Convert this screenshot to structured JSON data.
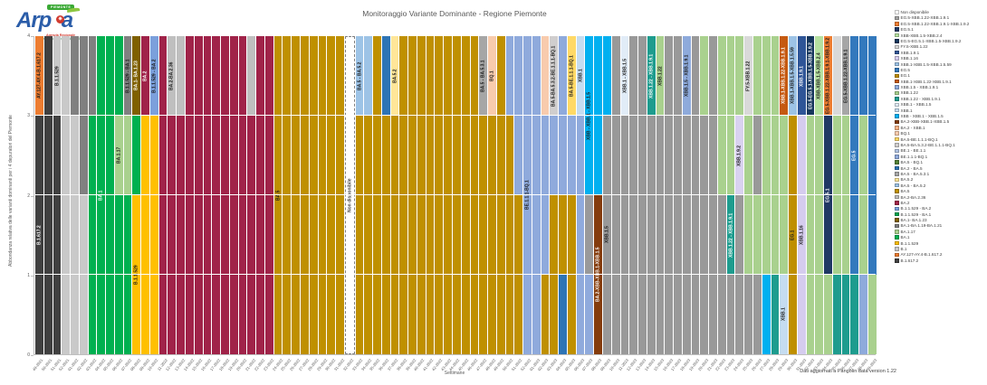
{
  "logo": {
    "tag": "PIEMONTE",
    "word": "Arp a",
    "word_left": "Arp",
    "word_right": "a",
    "dot_glyph": "✷",
    "tagline_1": "Agenzia Regionale",
    "tagline_2": "per la Protezione Ambientale"
  },
  "footer": {
    "source_note": "Dati aggiornati a Pangolin data version 1.22"
  },
  "chart_data": {
    "type": "bar",
    "stacked": true,
    "title": "Monitoraggio Variante Dominante - Regione Piemonte",
    "xlabel": "Settimane",
    "ylabel": "Abbondanza relativa delle varianti dominanti per i 4 depuratori del Piemonte",
    "ylim": [
      0,
      4
    ],
    "yticks": [
      0,
      1,
      2,
      3,
      4
    ],
    "grid": true,
    "legend_position": "right",
    "palette": {
      "Non disponibile": "#FFFFFF",
      "EG.5-XBB.1.22-XBB.1.9.1": "#A6A6A6",
      "EG.5-XBB.1.22-XBB.1.9.1-XBB.1.9.2": "#ED7D31",
      "EG.5.1": "#1F3864",
      "XBB-XBB.1.5-XBB.2.4": "#B5E0A0",
      "EG.5-EG.5.1-XBB.1.5-XBB.1.9.2": "#16365C",
      "FY.5-XBB.1.22": "#D9D9D9",
      "XBB.1.9.1": "#2F5597",
      "XBB.1.16": "#D5CCEE",
      "XBB.1-XBB.1.5-XBB.1.5.59": "#9DC3E6",
      "EG.5": "#3379BD",
      "EG.1": "#BF8F00",
      "XBB.1-XBB.1.22-XBB.1.9.1": "#C55A11",
      "XBB.1.5 - XBB.1.9.1": "#8EAADB",
      "XBB.1.22": "#A9D18E",
      "XBB.1.22 - XBB.1.9.1": "#1E9C8E",
      "XBB.1 - XBB.1.5": "#E1ECF7",
      "XBB.1": "#C5DCF0",
      "XBB - XBB.1 - XBB.1.5": "#00B0F0",
      "BA.2-XBB-XBB.1-XBB.1.5": "#843C0C",
      "BA.2 - XBB.1": "#F4B183",
      "BQ.1": "#F8CBAD",
      "BA.5-BE.1.1.1-BQ.1": "#FFD966",
      "BA.5-BA.5.3.2-BE.1.1.1-BQ.1": "#D0CECE",
      "BE.1 - BE.1.1": "#B4C7E7",
      "BE.1.1.1-BQ.1": "#8FAADC",
      "BA.5 - BQ.1": "#538135",
      "BA.2 - BA.5": "#2E74B5",
      "BA.5 - BA.5.3.1": "#A6A6A6",
      "BA.5.2": "#FFE699",
      "BA.5 - BA.5.2": "#9DC3E6",
      "BA.5": "#BF9000",
      "BA.2-BA.2.36": "#BFBFBF",
      "BA.2": "#A02349",
      "B.1.1.529 - BA.2": "#7BA0DC",
      "B.1.1.529 - BA.1": "#00A550",
      "BA.1- BA.1.23": "#7F6000",
      "BA.1-BA.1.19-BA.1.21": "#808080",
      "BA.1.17": "#A9D18E",
      "BA.1": "#00B050",
      "B.1.1.529": "#FFC000",
      "B.1": "#C9C9C9",
      "AY.127-AY.4-B.1.617.2": "#ED7D31",
      "B.1.617.2": "#404040"
    },
    "legend": [
      "Non disponibile",
      "EG.5-XBB.1.22-XBB.1.9.1",
      "EG.5-XBB.1.22-XBB.1.9.1-XBB.1.9.2",
      "EG.5.1",
      "XBB-XBB.1.5-XBB.2.4",
      "EG.5-EG.5.1-XBB.1.5-XBB.1.9.2",
      "FY.5-XBB.1.22",
      "XBB.1.9.1",
      "XBB.1.16",
      "XBB.1-XBB.1.5-XBB.1.5.59",
      "EG.5",
      "EG.1",
      "XBB.1-XBB.1.22-XBB.1.9.1",
      "XBB.1.5 - XBB.1.9.1",
      "XBB.1.22",
      "XBB.1.22 - XBB.1.9.1",
      "XBB.1 - XBB.1.5",
      "XBB.1",
      "XBB - XBB.1 - XBB.1.5",
      "BA.2-XBB-XBB.1-XBB.1.5",
      "BA.2 - XBB.1",
      "BQ.1",
      "BA.5-BE.1.1.1-BQ.1",
      "BA.5-BA.5.3.2-BE.1.1.1-BQ.1",
      "BE.1 - BE.1.1",
      "BE.1.1.1-BQ.1",
      "BA.5 - BQ.1",
      "BA.2 - BA.5",
      "BA.5 - BA.5.3.1",
      "BA.5.2",
      "BA.5 - BA.5.2",
      "BA.5",
      "BA.2-BA.2.36",
      "BA.2",
      "B.1.1.529 - BA.2",
      "B.1.1.529 - BA.1",
      "BA.1- BA.1.23",
      "BA.1-BA.1.19-BA.1.21",
      "BA.1.17",
      "BA.1",
      "B.1.1.529",
      "B.1",
      "AY.127-AY.4-B.1.617.2",
      "B.1.617.2"
    ],
    "bars": [
      [
        "49-2021",
        [
          [
            "B.1.617.2",
            3,
            1
          ],
          [
            "AY.127-AY.4-B.1.617.2",
            1,
            1
          ]
        ]
      ],
      [
        "50-2021",
        [
          [
            "B.1.617.2",
            4
          ]
        ]
      ],
      [
        "51-2021",
        [
          [
            "B.1.617.2",
            3
          ],
          [
            "B.1",
            1,
            "B.1.1.529"
          ]
        ]
      ],
      [
        "52-2021",
        [
          [
            "B.1",
            4
          ]
        ]
      ],
      [
        "01-2022",
        [
          [
            "B.1",
            3
          ],
          [
            "BA.1-BA.1.19-BA.1.21",
            1
          ]
        ]
      ],
      [
        "02-2022",
        [
          [
            "B.1",
            2
          ],
          [
            "BA.1-BA.1.19-BA.1.21",
            2
          ]
        ]
      ],
      [
        "03-2022",
        [
          [
            "BA.1",
            3
          ],
          [
            "BA.1-BA.1.19-BA.1.21",
            1
          ]
        ]
      ],
      [
        "04-2022",
        [
          [
            "BA.1",
            4,
            1
          ]
        ]
      ],
      [
        "05-2022",
        [
          [
            "BA.1",
            4
          ]
        ]
      ],
      [
        "06-2022",
        [
          [
            "BA.1",
            2
          ],
          [
            "BA.1.17",
            1,
            1
          ],
          [
            "BA.1",
            1
          ]
        ]
      ],
      [
        "07-2022",
        [
          [
            "BA.1",
            2
          ],
          [
            "BA.1.17",
            1
          ],
          [
            "BA.1-BA.1.19-BA.1.21",
            1,
            "B.1.1.529 - BA.1"
          ]
        ]
      ],
      [
        "08-2022",
        [
          [
            "B.1.1.529",
            2,
            1
          ],
          [
            "BA.1",
            1
          ],
          [
            "BA.1- BA.1.23",
            1,
            1
          ]
        ]
      ],
      [
        "09-2022",
        [
          [
            "B.1.1.529",
            3
          ],
          [
            "BA.2",
            1,
            1
          ]
        ]
      ],
      [
        "10-2022",
        [
          [
            "B.1.1.529",
            3
          ],
          [
            "B.1.1.529 - BA.2",
            1,
            1
          ]
        ]
      ],
      [
        "11-2022",
        [
          [
            "BA.2",
            4
          ]
        ]
      ],
      [
        "12-2022",
        [
          [
            "BA.2",
            3
          ],
          [
            "BA.2-BA.2.36",
            1,
            1
          ]
        ]
      ],
      [
        "13-2022",
        [
          [
            "BA.2",
            3
          ],
          [
            "BA.2-BA.2.36",
            1
          ]
        ]
      ],
      [
        "14-2022",
        [
          [
            "BA.2",
            4
          ]
        ]
      ],
      [
        "15-2022",
        [
          [
            "BA.2",
            4
          ]
        ]
      ],
      [
        "16-2022",
        [
          [
            "BA.2",
            4
          ]
        ]
      ],
      [
        "17-2022",
        [
          [
            "BA.2",
            4
          ]
        ]
      ],
      [
        "18-2022",
        [
          [
            "BA.2",
            4
          ]
        ]
      ],
      [
        "19-2022",
        [
          [
            "BA.2",
            4
          ]
        ]
      ],
      [
        "20-2022",
        [
          [
            "BA.2",
            4
          ]
        ]
      ],
      [
        "21-2022",
        [
          [
            "BA.2",
            3
          ],
          [
            "BA.2-BA.2.36",
            1
          ]
        ]
      ],
      [
        "22-2022",
        [
          [
            "BA.2",
            4
          ]
        ]
      ],
      [
        "23-2022",
        [
          [
            "BA.2",
            4
          ]
        ]
      ],
      [
        "24-2022",
        [
          [
            "BA.5",
            4,
            1
          ]
        ]
      ],
      [
        "25-2022",
        [
          [
            "BA.5",
            4
          ]
        ]
      ],
      [
        "26-2022",
        [
          [
            "BA.5",
            4
          ]
        ]
      ],
      [
        "27-2022",
        [
          [
            "BA.5",
            4
          ]
        ]
      ],
      [
        "28-2022",
        [
          [
            "BA.5",
            4
          ]
        ]
      ],
      [
        "29-2022",
        [
          [
            "BA.5",
            4
          ]
        ]
      ],
      [
        "30-2022",
        [
          [
            "BA.5",
            4
          ]
        ]
      ],
      [
        "31-2022",
        [
          [
            "BA.5",
            4
          ]
        ]
      ],
      [
        "32-2022",
        [
          [
            "Non disponibile",
            4,
            1
          ]
        ]
      ],
      [
        "33-2022",
        [
          [
            "BA.5",
            3
          ],
          [
            "BA.5 - BA.5.2",
            1,
            1
          ]
        ]
      ],
      [
        "34-2022",
        [
          [
            "BA.5",
            3
          ],
          [
            "BA.5 - BA.5.2",
            1
          ]
        ]
      ],
      [
        "35-2022",
        [
          [
            "BA.5",
            4
          ]
        ]
      ],
      [
        "36-2022",
        [
          [
            "BA.5",
            3
          ],
          [
            "BA.2 - BA.5",
            1
          ]
        ]
      ],
      [
        "37-2022",
        [
          [
            "BA.5",
            3
          ],
          [
            "BA.5.2",
            1,
            1
          ]
        ]
      ],
      [
        "38-2022",
        [
          [
            "BA.5",
            4
          ]
        ]
      ],
      [
        "39-2022",
        [
          [
            "BA.5",
            4
          ]
        ]
      ],
      [
        "40-2022",
        [
          [
            "BA.5",
            4
          ]
        ]
      ],
      [
        "41-2022",
        [
          [
            "BA.5",
            4
          ]
        ]
      ],
      [
        "42-2022",
        [
          [
            "BA.5",
            4
          ]
        ]
      ],
      [
        "43-2022",
        [
          [
            "BA.5",
            4
          ]
        ]
      ],
      [
        "44-2022",
        [
          [
            "BA.5",
            4
          ]
        ]
      ],
      [
        "45-2022",
        [
          [
            "BA.5",
            4
          ]
        ]
      ],
      [
        "46-2022",
        [
          [
            "BA.5",
            4
          ]
        ]
      ],
      [
        "47-2022",
        [
          [
            "BA.5",
            3
          ],
          [
            "BA.5 - BA.5.3.1",
            1,
            1
          ]
        ]
      ],
      [
        "48-2022",
        [
          [
            "BA.5",
            3
          ],
          [
            "BQ.1",
            1,
            1
          ]
        ]
      ],
      [
        "49-2022",
        [
          [
            "BA.5",
            4
          ]
        ]
      ],
      [
        "50-2022",
        [
          [
            "BA.5",
            3
          ],
          [
            "BE.1.1.1-BQ.1",
            1
          ]
        ]
      ],
      [
        "51-2022",
        [
          [
            "BA.5",
            2
          ],
          [
            "BE.1.1.1-BQ.1",
            2
          ]
        ]
      ],
      [
        "52-2022",
        [
          [
            "BE.1.1.1-BQ.1",
            4,
            1
          ]
        ]
      ],
      [
        "01-2023",
        [
          [
            "BE.1.1.1-BQ.1",
            4
          ]
        ]
      ],
      [
        "02-2023",
        [
          [
            "BA.5",
            1
          ],
          [
            "BE.1.1.1-BQ.1",
            2
          ],
          [
            "BQ.1",
            1
          ]
        ]
      ],
      [
        "03-2023",
        [
          [
            "BA.5",
            2
          ],
          [
            "BE.1.1.1-BQ.1",
            1
          ],
          [
            "BA.5-BA.5.3.2-BE.1.1.1-BQ.1",
            1,
            1
          ]
        ]
      ],
      [
        "04-2023",
        [
          [
            "BA.2 - BA.5",
            1
          ],
          [
            "BA.5",
            1
          ],
          [
            "BE.1.1.1-BQ.1",
            2
          ]
        ]
      ],
      [
        "05-2023",
        [
          [
            "BA.5",
            2
          ],
          [
            "BE.1.1.1-BQ.1",
            1
          ],
          [
            "BA.5-BE.1.1.1-BQ.1",
            1,
            1
          ]
        ]
      ],
      [
        "06-2023",
        [
          [
            "BE.1.1.1-BQ.1",
            3
          ],
          [
            "XBB.1",
            1,
            1
          ]
        ]
      ],
      [
        "07-2023",
        [
          [
            "BE.1.1.1-BQ.1",
            1
          ],
          [
            "XBB.1.5",
            1
          ],
          [
            "XBB - XBB.1 - XBB.1.5",
            2,
            1
          ]
        ]
      ],
      [
        "08-2023",
        [
          [
            "BA.2-XBB-XBB.1-XBB.1.5",
            2,
            1
          ],
          [
            "XBB - XBB.1 - XBB.1.5",
            2
          ]
        ]
      ],
      [
        "09-2023",
        [
          [
            "XBB.1.5",
            3,
            1
          ],
          [
            "XBB - XBB.1 - XBB.1.5",
            1
          ]
        ]
      ],
      [
        "10-2023",
        [
          [
            "XBB.1.5",
            4
          ]
        ]
      ],
      [
        "11-2023",
        [
          [
            "XBB.1.5",
            3
          ],
          [
            "XBB.1 - XBB.1.5",
            1,
            1
          ]
        ]
      ],
      [
        "12-2023",
        [
          [
            "XBB.1.5",
            4
          ]
        ]
      ],
      [
        "13-2023",
        [
          [
            "XBB.1.5",
            4
          ]
        ]
      ],
      [
        "14-2023",
        [
          [
            "XBB.1.5",
            3
          ],
          [
            "XBB.1.22 - XBB.1.9.1",
            1,
            1
          ]
        ]
      ],
      [
        "15-2023",
        [
          [
            "XBB.1.5",
            3
          ],
          [
            "XBB.1.22",
            1,
            1
          ]
        ]
      ],
      [
        "16-2023",
        [
          [
            "XBB.1.5",
            4
          ]
        ]
      ],
      [
        "17-2023",
        [
          [
            "XBB.1.5",
            4
          ]
        ]
      ],
      [
        "18-2023",
        [
          [
            "XBB.1.5",
            3
          ],
          [
            "XBB.1.5 - XBB.1.9.1",
            1,
            1
          ]
        ]
      ],
      [
        "19-2023",
        [
          [
            "XBB.1.5",
            4
          ]
        ]
      ],
      [
        "20-2023",
        [
          [
            "XBB.1.5",
            3
          ],
          [
            "XBB.1.22",
            1
          ]
        ]
      ],
      [
        "21-2023",
        [
          [
            "XBB.1.5",
            4
          ]
        ]
      ],
      [
        "22-2023",
        [
          [
            "XBB.1.5",
            2
          ],
          [
            "XBB.1.22",
            2
          ]
        ]
      ],
      [
        "23-2023",
        [
          [
            "XBB.1.5",
            1
          ],
          [
            "XBB.1.22 - XBB.1.9.1",
            1,
            1
          ],
          [
            "XBB.1.22",
            2
          ]
        ]
      ],
      [
        "24-2023",
        [
          [
            "XBB.1.5",
            2
          ],
          [
            "XBB.1.9.2",
            1,
            1
          ],
          [
            "XBB.1.22",
            1
          ]
        ]
      ],
      [
        "25-2023",
        [
          [
            "XBB.1.5",
            1
          ],
          [
            "XBB.1.22",
            2
          ],
          [
            "FY.5-XBB.1.22",
            1,
            1
          ]
        ]
      ],
      [
        "26-2023",
        [
          [
            "XBB.1.5",
            1
          ],
          [
            "XBB.1.22",
            1
          ],
          [
            "XBB.1.5",
            1
          ],
          [
            "XBB.1.22",
            1
          ]
        ]
      ],
      [
        "27-2023",
        [
          [
            "XBB - XBB.1 - XBB.1.5",
            1
          ],
          [
            "XBB.1.22",
            3
          ]
        ]
      ],
      [
        "28-2023",
        [
          [
            "XBB.1.22 - XBB.1.9.1",
            1
          ],
          [
            "XBB.1.22",
            3
          ]
        ]
      ],
      [
        "29-2023",
        [
          [
            "XBB.1",
            1,
            1
          ],
          [
            "XBB.1.22",
            2
          ],
          [
            "XBB.1-XBB.1.22-XBB.1.9.1",
            1,
            1
          ]
        ]
      ],
      [
        "30-2023",
        [
          [
            "EG.1",
            3,
            1
          ],
          [
            "XBB.1-XBB.1.5-XBB.1.5.59",
            1,
            1
          ]
        ]
      ],
      [
        "31-2023",
        [
          [
            "XBB.1.16",
            3,
            1
          ],
          [
            "XBB.1.9.1",
            1,
            1
          ]
        ]
      ],
      [
        "32-2023",
        [
          [
            "XBB.1.22",
            3
          ],
          [
            "EG.5-EG.5.1-XBB.1.5-XBB.1.9.2",
            1,
            1
          ]
        ]
      ],
      [
        "33-2023",
        [
          [
            "XBB.1.22",
            3
          ],
          [
            "XBB-XBB.1.5-XBB.2.4",
            1,
            1
          ]
        ]
      ],
      [
        "34-2023",
        [
          [
            "XBB.1.22",
            1
          ],
          [
            "EG.5.1",
            2,
            1
          ],
          [
            "EG.5-XBB.1.22-XBB.1.9.1-XBB.1.9.2",
            1,
            1
          ]
        ]
      ],
      [
        "35-2023",
        [
          [
            "XBB.1.22 - XBB.1.9.1",
            1
          ],
          [
            "XBB.1.22",
            2
          ],
          [
            "FY.5-XBB.1.22",
            1
          ]
        ]
      ],
      [
        "36-2023",
        [
          [
            "XBB.1.22 - XBB.1.9.1",
            1
          ],
          [
            "XBB.1.22",
            2
          ],
          [
            "EG.5-XBB.1.22-XBB.1.9.1",
            1,
            1
          ]
        ]
      ],
      [
        "37-2023",
        [
          [
            "XBB.1.22 - XBB.1.9.1",
            1
          ],
          [
            "EG.5",
            3,
            1
          ]
        ]
      ],
      [
        "38-2023",
        [
          [
            "XBB.1.5 - XBB.1.9.1",
            1
          ],
          [
            "XBB.1.22",
            2
          ],
          [
            "EG.5",
            1
          ]
        ]
      ],
      [
        "39-2023",
        [
          [
            "XBB.1.22",
            1
          ],
          [
            "EG.5",
            3
          ]
        ]
      ]
    ],
    "extra_palette_note": {
      "XBB.1.9.2": "#D9D2F0"
    }
  }
}
